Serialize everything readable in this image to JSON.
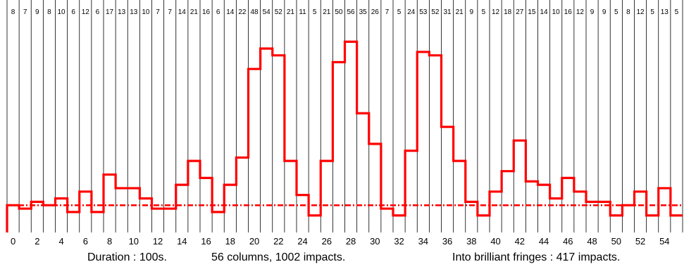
{
  "chart_data": {
    "type": "histogram-step",
    "x": [
      0,
      1,
      2,
      3,
      4,
      5,
      6,
      7,
      8,
      9,
      10,
      11,
      12,
      13,
      14,
      15,
      16,
      17,
      18,
      19,
      20,
      21,
      22,
      23,
      24,
      25,
      26,
      27,
      28,
      29,
      30,
      31,
      32,
      33,
      34,
      35,
      36,
      37,
      38,
      39,
      40,
      41,
      42,
      43,
      44,
      45,
      46,
      47,
      48,
      49,
      50,
      51,
      52,
      53,
      54,
      55
    ],
    "counts": [
      8,
      7,
      9,
      8,
      10,
      6,
      12,
      6,
      17,
      13,
      13,
      10,
      7,
      7,
      14,
      21,
      16,
      6,
      14,
      22,
      48,
      54,
      52,
      21,
      11,
      5,
      21,
      50,
      56,
      35,
      26,
      7,
      5,
      24,
      53,
      52,
      31,
      21,
      9,
      5,
      12,
      18,
      27,
      15,
      14,
      10,
      16,
      12,
      9,
      9,
      5,
      8,
      12,
      5,
      13,
      5
    ],
    "x_tick_labels": [
      "0",
      "2",
      "4",
      "6",
      "8",
      "10",
      "12",
      "14",
      "16",
      "18",
      "20",
      "22",
      "24",
      "26",
      "28",
      "30",
      "32",
      "34",
      "36",
      "38",
      "40",
      "42",
      "44",
      "46",
      "48",
      "50",
      "52",
      "54"
    ],
    "mean_line_value": 8,
    "ylim": [
      0,
      60
    ],
    "colors": {
      "series": "#ff0000",
      "grid": "#000000"
    }
  },
  "captions": {
    "duration": "Duration : 100s.",
    "columns": "56 columns,  1002 impacts.",
    "fringes": "Into brilliant fringes : 417  impacts."
  }
}
